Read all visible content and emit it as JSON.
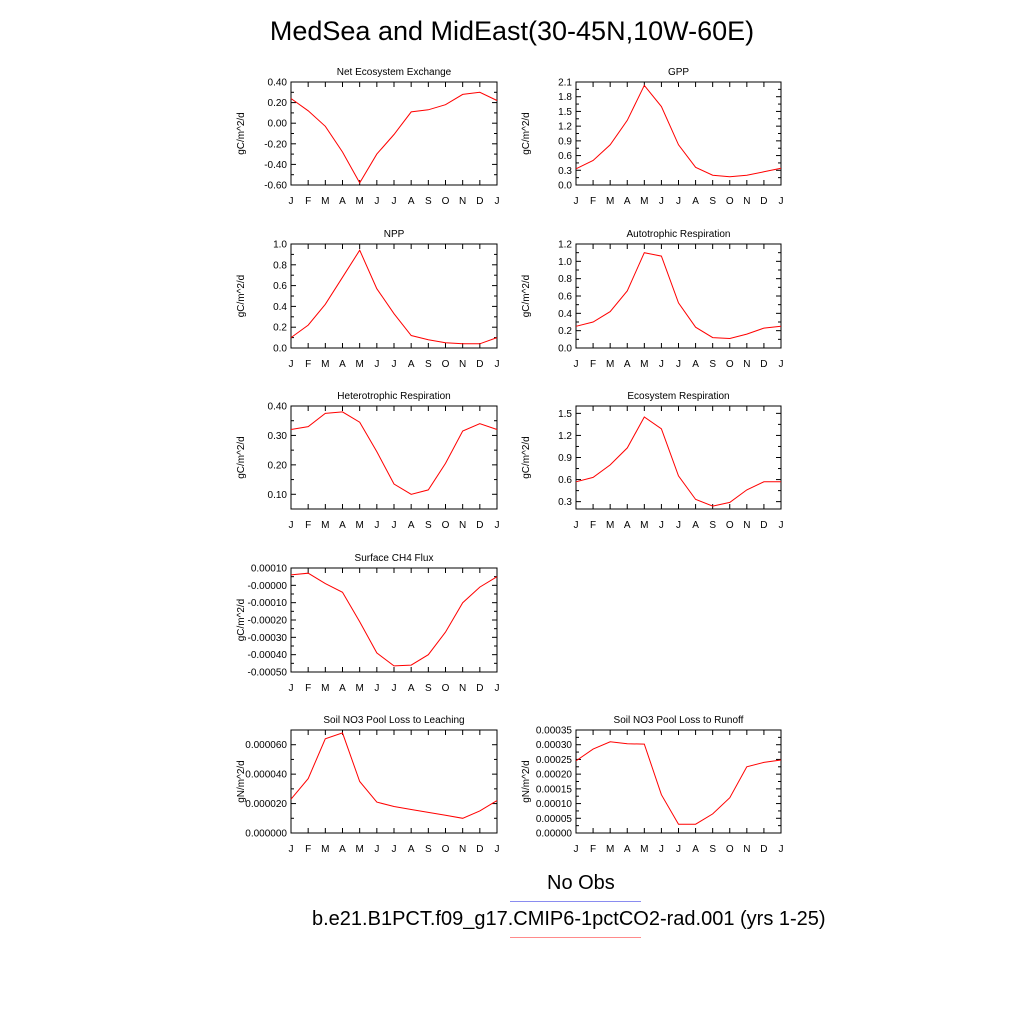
{
  "title": "MedSea and MidEast(30-45N,10W-60E)",
  "months": [
    "J",
    "F",
    "M",
    "A",
    "M",
    "J",
    "J",
    "A",
    "S",
    "O",
    "N",
    "D",
    "J"
  ],
  "legend": {
    "obs_label": "No Obs",
    "obs_color": "#8a8cf0",
    "model_label": "b.e21.B1PCT.f09_g17.CMIP6-1pctCO2-rad.001 (yrs 1-25)",
    "model_color": "#ff8a8a"
  },
  "line_color": "#ff0000",
  "chart_data": [
    {
      "type": "line",
      "title": "Net Ecosystem Exchange",
      "ylabel": "gC/m^2/d",
      "ylim": [
        -0.6,
        0.4
      ],
      "yticks": [
        -0.6,
        -0.4,
        -0.2,
        0.0,
        0.2,
        0.4
      ],
      "yticklabels": [
        "-0.60",
        "-0.40",
        "-0.20",
        "0.00",
        "0.20",
        "0.40"
      ],
      "minor_yticks": [
        -0.5,
        -0.3,
        -0.1,
        0.1,
        0.3
      ],
      "values": [
        0.24,
        0.12,
        -0.03,
        -0.28,
        -0.58,
        -0.3,
        -0.11,
        0.11,
        0.13,
        0.18,
        0.28,
        0.3,
        0.22
      ]
    },
    {
      "type": "line",
      "title": "GPP",
      "ylabel": "gC/m^2/d",
      "ylim": [
        0.0,
        2.1
      ],
      "yticks": [
        0.0,
        0.3,
        0.6,
        0.9,
        1.2,
        1.5,
        1.8,
        2.1
      ],
      "yticklabels": [
        "0.0",
        "0.3",
        "0.6",
        "0.9",
        "1.2",
        "1.5",
        "1.8",
        "2.1"
      ],
      "minor_yticks": [
        0.15,
        0.45,
        0.75,
        1.05,
        1.35,
        1.65,
        1.95
      ],
      "values": [
        0.33,
        0.5,
        0.82,
        1.32,
        2.03,
        1.6,
        0.82,
        0.36,
        0.2,
        0.17,
        0.2,
        0.27,
        0.34
      ]
    },
    {
      "type": "line",
      "title": "NPP",
      "ylabel": "gC/m^2/d",
      "ylim": [
        0.0,
        1.0
      ],
      "yticks": [
        0.0,
        0.2,
        0.4,
        0.6,
        0.8,
        1.0
      ],
      "yticklabels": [
        "0.0",
        "0.2",
        "0.4",
        "0.6",
        "0.8",
        "1.0"
      ],
      "minor_yticks": [
        0.1,
        0.3,
        0.5,
        0.7,
        0.9
      ],
      "values": [
        0.1,
        0.22,
        0.42,
        0.68,
        0.94,
        0.57,
        0.33,
        0.12,
        0.08,
        0.05,
        0.04,
        0.04,
        0.1
      ]
    },
    {
      "type": "line",
      "title": "Autotrophic Respiration",
      "ylabel": "gC/m^2/d",
      "ylim": [
        0.0,
        1.2
      ],
      "yticks": [
        0.0,
        0.2,
        0.4,
        0.6,
        0.8,
        1.0,
        1.2
      ],
      "yticklabels": [
        "0.0",
        "0.2",
        "0.4",
        "0.6",
        "0.8",
        "1.0",
        "1.2"
      ],
      "minor_yticks": [
        0.1,
        0.3,
        0.5,
        0.7,
        0.9,
        1.1
      ],
      "values": [
        0.25,
        0.3,
        0.42,
        0.66,
        1.1,
        1.06,
        0.52,
        0.24,
        0.12,
        0.11,
        0.16,
        0.23,
        0.25
      ]
    },
    {
      "type": "line",
      "title": "Heterotrophic Respiration",
      "ylabel": "gC/m^2/d",
      "ylim": [
        0.05,
        0.4
      ],
      "yticks": [
        0.1,
        0.2,
        0.3,
        0.4
      ],
      "yticklabels": [
        "0.10",
        "0.20",
        "0.30",
        "0.40"
      ],
      "minor_yticks": [
        0.15,
        0.25,
        0.35
      ],
      "values": [
        0.32,
        0.33,
        0.375,
        0.38,
        0.345,
        0.245,
        0.135,
        0.1,
        0.115,
        0.205,
        0.315,
        0.34,
        0.32
      ]
    },
    {
      "type": "line",
      "title": "Ecosystem Respiration",
      "ylabel": "gC/m^2/d",
      "ylim": [
        0.2,
        1.6
      ],
      "yticks": [
        0.3,
        0.6,
        0.9,
        1.2,
        1.5
      ],
      "yticklabels": [
        "0.3",
        "0.6",
        "0.9",
        "1.2",
        "1.5"
      ],
      "minor_yticks": [
        0.45,
        0.75,
        1.05,
        1.35
      ],
      "values": [
        0.57,
        0.63,
        0.8,
        1.03,
        1.45,
        1.29,
        0.65,
        0.33,
        0.24,
        0.29,
        0.46,
        0.57,
        0.57
      ]
    },
    {
      "type": "line",
      "title": "Surface CH4 Flux",
      "ylabel": "gC/m^2/d",
      "ylim": [
        -0.0005,
        0.0001
      ],
      "yticks": [
        -0.0005,
        -0.0004,
        -0.0003,
        -0.0002,
        -0.0001,
        0.0,
        0.0001
      ],
      "yticklabels": [
        "-0.00050",
        "-0.00040",
        "-0.00030",
        "-0.00020",
        "-0.00010",
        "-0.00000",
        "0.00010"
      ],
      "minor_yticks": [
        -0.00045,
        -0.00035,
        -0.00025,
        -0.00015,
        -5e-05,
        5e-05
      ],
      "values": [
        6e-05,
        7e-05,
        1e-05,
        -4e-05,
        -0.00021,
        -0.00039,
        -0.000465,
        -0.00046,
        -0.0004,
        -0.00027,
        -0.0001,
        -1e-05,
        5e-05
      ]
    },
    {
      "type": "line",
      "title": "Soil NO3 Pool Loss to Leaching",
      "ylabel": "gN/m^2/d",
      "ylim": [
        0.0,
        7e-05
      ],
      "yticks": [
        0.0,
        2e-05,
        4e-05,
        6e-05
      ],
      "yticklabels": [
        "0.000000",
        "0.000020",
        "0.000040",
        "0.000060"
      ],
      "minor_yticks": [
        1e-05,
        3e-05,
        5e-05
      ],
      "values": [
        2.3e-05,
        3.7e-05,
        6.4e-05,
        6.8e-05,
        3.5e-05,
        2.1e-05,
        1.8e-05,
        1.6e-05,
        1.4e-05,
        1.2e-05,
        1e-05,
        1.5e-05,
        2.2e-05
      ]
    },
    {
      "type": "line",
      "title": "Soil NO3 Pool Loss to Runoff",
      "ylabel": "gN/m^2/d",
      "ylim": [
        0.0,
        0.00035
      ],
      "yticks": [
        0.0,
        5e-05,
        0.0001,
        0.00015,
        0.0002,
        0.00025,
        0.0003,
        0.00035
      ],
      "yticklabels": [
        "0.00000",
        "0.00005",
        "0.00010",
        "0.00015",
        "0.00020",
        "0.00025",
        "0.00030",
        "0.00035"
      ],
      "minor_yticks": [
        2.5e-05,
        7.5e-05,
        0.000125,
        0.000175,
        0.000225,
        0.000275,
        0.000325
      ],
      "values": [
        0.000245,
        0.000285,
        0.00031,
        0.000303,
        0.000302,
        0.00013,
        3e-05,
        3e-05,
        6.5e-05,
        0.00012,
        0.000225,
        0.00024,
        0.000248
      ]
    }
  ]
}
